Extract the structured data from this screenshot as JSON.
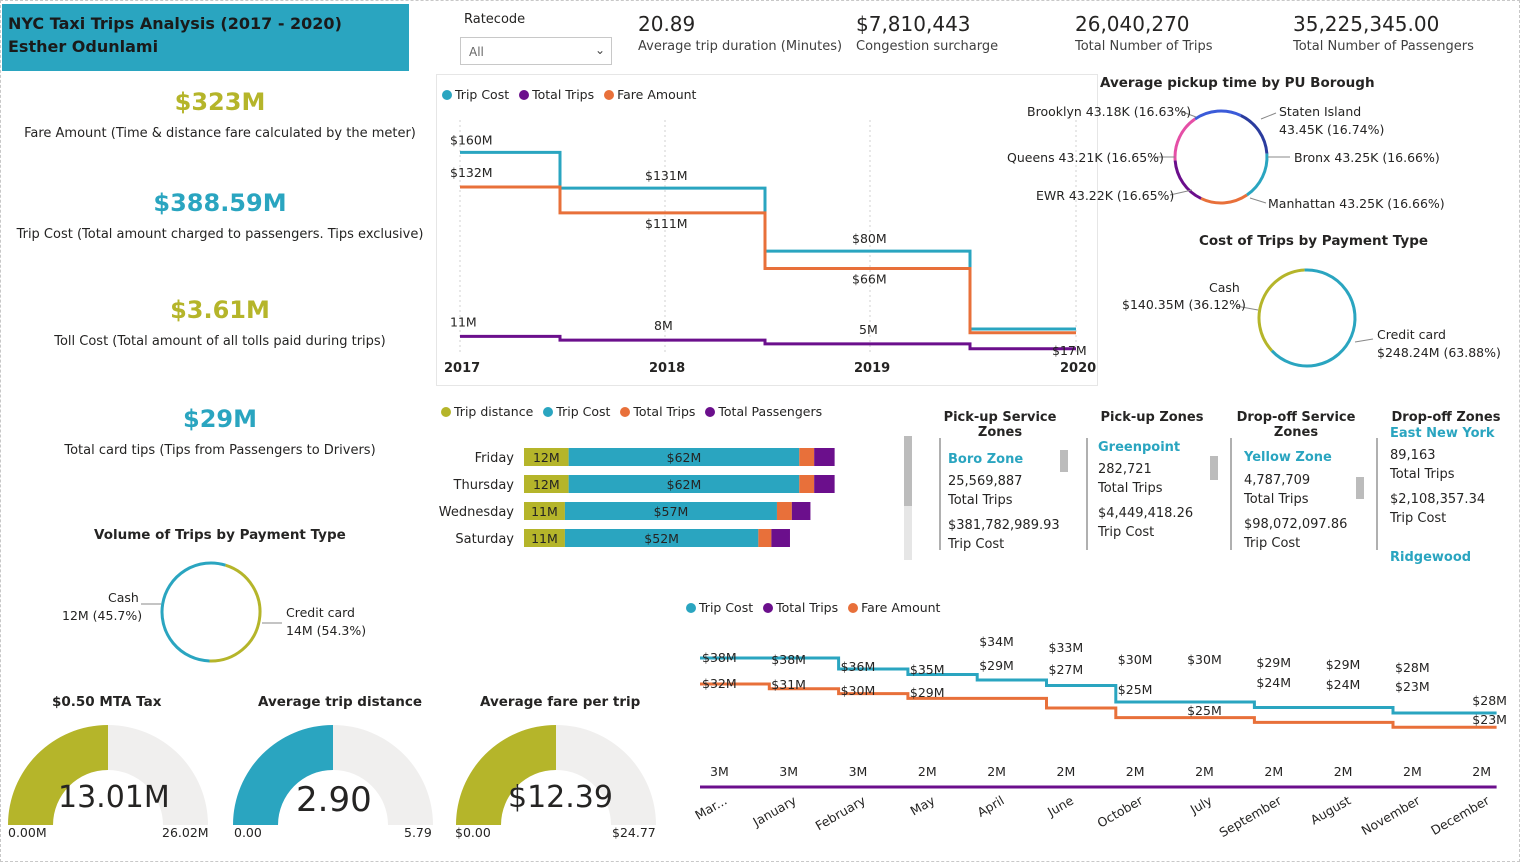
{
  "header": {
    "title": "NYC Taxi Trips Analysis (2017 - 2020)",
    "author": "Esther Odunlami"
  },
  "slicer": {
    "label": "Ratecode",
    "value": "All"
  },
  "top_cards": [
    {
      "value": "20.89",
      "label": "Average trip duration (Minutes)"
    },
    {
      "value": "$7,810,443",
      "label": "Congestion surcharge"
    },
    {
      "value": "26,040,270",
      "label": "Total Number of Trips"
    },
    {
      "value": "35,225,345.00",
      "label": "Total Number of Passengers"
    }
  ],
  "left_kpis": [
    {
      "value": "$323M",
      "caption": "Fare Amount (Time & distance fare calculated by the meter)",
      "color": "#b5b52a"
    },
    {
      "value": "$388.59M",
      "caption": "Trip Cost (Total amount charged to passengers. Tips exclusive)",
      "color": "#2aa5c0"
    },
    {
      "value": "$3.61M",
      "caption": "Toll Cost (Total amount of all tolls paid during trips)",
      "color": "#b5b52a"
    },
    {
      "value": "$29M",
      "caption": "Total card tips (Tips from Passengers to Drivers)",
      "color": "#2aa5c0"
    }
  ],
  "colors": {
    "teal": "#2aa5c0",
    "orange": "#e8703a",
    "purple": "#6b0f8c",
    "olive": "#b5b52a",
    "pink": "#e54fa6",
    "blue": "#3b5bd9",
    "gauge_bg": "#f0efee"
  },
  "gauges": [
    {
      "title": "$0.50 MTA Tax",
      "value": "13.01M",
      "min": "0.00M",
      "max": "26.02M",
      "fraction": 0.5,
      "color": "#b5b52a"
    },
    {
      "title": "Average trip distance",
      "value": "2.90",
      "min": "0.00",
      "max": "5.79",
      "fraction": 0.5,
      "color": "#2aa5c0"
    },
    {
      "title": "Average fare per trip",
      "value": "$12.39",
      "min": "$0.00",
      "max": "$24.77",
      "fraction": 0.5,
      "color": "#b5b52a"
    }
  ],
  "chart_data": [
    {
      "type": "line",
      "id": "yearly",
      "categories": [
        "2017",
        "2018",
        "2019",
        "2020"
      ],
      "series": [
        {
          "name": "Trip Cost",
          "color": "#2aa5c0",
          "values": [
            160,
            131,
            80,
            17
          ],
          "labels": [
            "$160M",
            "$131M",
            "$80M",
            "$17M"
          ]
        },
        {
          "name": "Total Trips",
          "color": "#6b0f8c",
          "values": [
            11,
            8,
            5,
            1
          ],
          "labels": [
            "11M",
            "8M",
            "5M",
            ""
          ]
        },
        {
          "name": "Fare Amount",
          "color": "#e8703a",
          "values": [
            132,
            111,
            66,
            14
          ],
          "labels": [
            "$132M",
            "$111M",
            "$66M",
            ""
          ]
        }
      ],
      "ylim": [
        0,
        170
      ]
    },
    {
      "type": "bar",
      "id": "weekday",
      "orientation": "horizontal-stacked",
      "categories": [
        "Friday",
        "Thursday",
        "Wednesday",
        "Saturday"
      ],
      "series": [
        {
          "name": "Trip distance",
          "color": "#b5b52a",
          "values": [
            12,
            12,
            11,
            11
          ],
          "labels": [
            "12M",
            "12M",
            "11M",
            "11M"
          ]
        },
        {
          "name": "Trip Cost",
          "color": "#2aa5c0",
          "values": [
            62,
            62,
            57,
            52
          ],
          "labels": [
            "$62M",
            "$62M",
            "$57M",
            "$52M"
          ]
        },
        {
          "name": "Total Trips",
          "color": "#e8703a",
          "values": [
            4,
            4,
            4,
            3.5
          ]
        },
        {
          "name": "Total Passengers",
          "color": "#6b0f8c",
          "values": [
            5.5,
            5.5,
            5,
            5
          ]
        }
      ]
    },
    {
      "type": "pie",
      "id": "pickup-borough",
      "title": "Average pickup time by PU Borough",
      "slices": [
        {
          "label": "Brooklyn 43.18K (16.63%)",
          "value": 16.63,
          "color": "#3b5bd9"
        },
        {
          "label": "Staten Island 43.45K (16.74%)",
          "value": 16.74,
          "color": "#2b3c9e"
        },
        {
          "label": "Bronx 43.25K (16.66%)",
          "value": 16.66,
          "color": "#2aa5c0"
        },
        {
          "label": "Manhattan 43.25K (16.66%)",
          "value": 16.66,
          "color": "#e8703a"
        },
        {
          "label": "EWR 43.22K (16.65%)",
          "value": 16.65,
          "color": "#6b0f8c"
        },
        {
          "label": "Queens 43.21K (16.65%)",
          "value": 16.65,
          "color": "#e54fa6"
        }
      ]
    },
    {
      "type": "pie",
      "id": "cost-payment",
      "title": "Cost of Trips by Payment Type",
      "slices": [
        {
          "label": "Cash",
          "sublabel": "$140.35M (36.12%)",
          "value": 36.12,
          "color": "#b5b52a"
        },
        {
          "label": "Credit card",
          "sublabel": "$248.24M (63.88%)",
          "value": 63.88,
          "color": "#2aa5c0"
        }
      ]
    },
    {
      "type": "pie",
      "id": "volume-payment",
      "title": "Volume of Trips by Payment Type",
      "slices": [
        {
          "label": "Cash",
          "sublabel": "12M (45.7%)",
          "value": 45.7,
          "color": "#b5b52a"
        },
        {
          "label": "Credit card",
          "sublabel": "14M (54.3%)",
          "value": 54.3,
          "color": "#2aa5c0"
        }
      ]
    },
    {
      "type": "line",
      "id": "monthly",
      "categories": [
        "Mar...",
        "January",
        "February",
        "May",
        "April",
        "June",
        "October",
        "July",
        "September",
        "August",
        "November",
        "December"
      ],
      "series": [
        {
          "name": "Trip Cost",
          "color": "#2aa5c0",
          "values": [
            38,
            38,
            36,
            35,
            34,
            33,
            30,
            30,
            29,
            29,
            28,
            28
          ],
          "labels": [
            "$38M",
            "$38M",
            "$36M",
            "$35M",
            "$34M",
            "$33M",
            "$30M",
            "$30M",
            "$29M",
            "$29M",
            "$28M",
            "$28M"
          ]
        },
        {
          "name": "Total Trips",
          "color": "#6b0f8c",
          "values": [
            3,
            3,
            3,
            2,
            2,
            2,
            2,
            2,
            2,
            2,
            2,
            2
          ],
          "labels": [
            "3M",
            "3M",
            "3M",
            "2M",
            "2M",
            "2M",
            "2M",
            "2M",
            "2M",
            "2M",
            "2M",
            "2M"
          ]
        },
        {
          "name": "Fare Amount",
          "color": "#e8703a",
          "values": [
            32,
            31,
            30,
            29,
            29,
            27,
            25,
            25,
            24,
            24,
            23,
            23
          ],
          "labels": [
            "$32M",
            "$31M",
            "$30M",
            "$29M",
            "$29M",
            "$27M",
            "$25M",
            "$25M",
            "$24M",
            "$24M",
            "$23M",
            "$23M"
          ]
        }
      ]
    }
  ],
  "zones": {
    "columns": [
      {
        "header_1": "Pick-up Service",
        "header_2": "Zones",
        "name": "Boro Zone",
        "trips": "25,569,887",
        "trips_label": "Total Trips",
        "cost": "$381,782,989.93",
        "cost_label": "Trip Cost"
      },
      {
        "header_1": "Pick-up Zones",
        "header_2": "",
        "name": "Greenpoint",
        "trips": "282,721",
        "trips_label": "Total Trips",
        "cost": "$4,449,418.26",
        "cost_label": "Trip Cost"
      },
      {
        "header_1": "Drop-off Service",
        "header_2": "Zones",
        "name": "Yellow Zone",
        "trips": "4,787,709",
        "trips_label": "Total Trips",
        "cost": "$98,072,097.86",
        "cost_label": "Trip Cost"
      },
      {
        "header_1": "Drop-off Zones",
        "header_2": "",
        "name": "East New York",
        "trips": "89,163",
        "trips_label": "Total Trips",
        "cost": "$2,108,357.34",
        "cost_label": "Trip Cost",
        "next_name": "Ridgewood"
      }
    ]
  }
}
